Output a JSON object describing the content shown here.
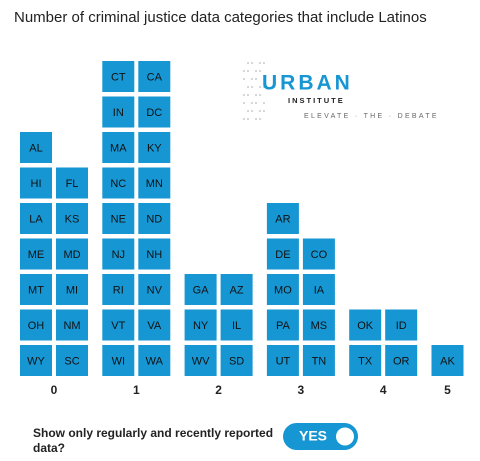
{
  "chart_data": {
    "type": "tile",
    "title": "Number of criminal justice data categories that include Latinos",
    "color": "#1696d2",
    "groups": [
      {
        "label": "0",
        "tiles": [
          "WY",
          "SC",
          "OH",
          "NM",
          "MT",
          "MI",
          "ME",
          "MD",
          "LA",
          "KS",
          "HI",
          "FL",
          "AL"
        ]
      },
      {
        "label": "1",
        "tiles": [
          "WI",
          "WA",
          "VT",
          "VA",
          "RI",
          "NV",
          "NJ",
          "NH",
          "NE",
          "ND",
          "NC",
          "MN",
          "MA",
          "KY",
          "IN",
          "DC",
          "CT",
          "CA"
        ]
      },
      {
        "label": "2",
        "tiles": [
          "WV",
          "SD",
          "NY",
          "IL",
          "GA",
          "AZ"
        ]
      },
      {
        "label": "3",
        "tiles": [
          "UT",
          "TN",
          "PA",
          "MS",
          "MO",
          "IA",
          "DE",
          "CO",
          "AR"
        ]
      },
      {
        "label": "4",
        "tiles": [
          "TX",
          "OR",
          "OK",
          "ID"
        ]
      },
      {
        "label": "5",
        "tiles": [
          "AK"
        ]
      }
    ]
  },
  "logo": {
    "name": "URBAN",
    "sub": "INSTITUTE",
    "tagline": "ELEVATE · THE · DEBATE"
  },
  "toggle": {
    "question": [
      "Show only regularly and recently reported",
      "data?"
    ],
    "state": "YES"
  }
}
